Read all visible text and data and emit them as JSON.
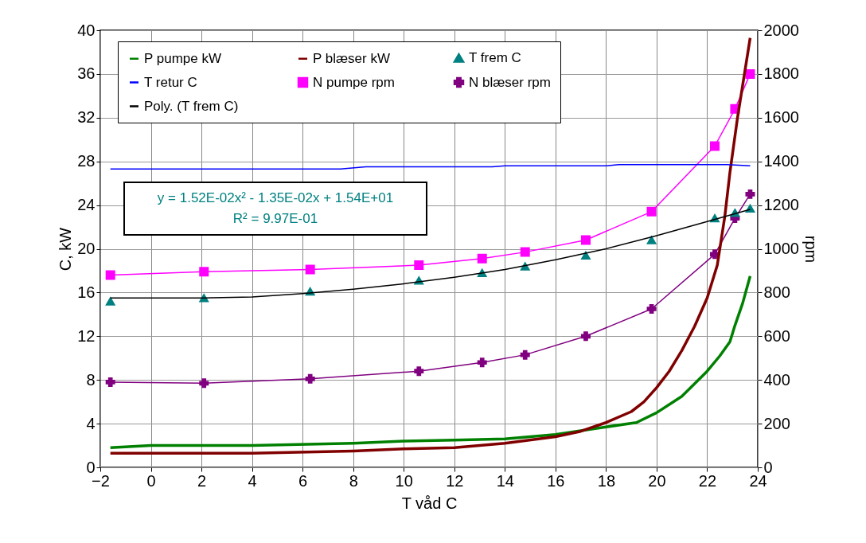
{
  "chart_data": {
    "type": "line",
    "xlabel": "T våd C",
    "ylabel": "C, kW",
    "y2label": "rpm",
    "xlim": [
      -2,
      24
    ],
    "xticks": [
      -2,
      0,
      2,
      4,
      6,
      8,
      10,
      12,
      14,
      16,
      18,
      20,
      22,
      24
    ],
    "ylim": [
      0,
      40
    ],
    "yticks": [
      0,
      4,
      8,
      12,
      16,
      20,
      24,
      28,
      32,
      36,
      40
    ],
    "y2lim": [
      0,
      2000
    ],
    "y2ticks": [
      0,
      200,
      400,
      600,
      800,
      1000,
      1200,
      1400,
      1600,
      1800,
      2000
    ],
    "grid": true,
    "legend": "top left",
    "annotations": [
      "y = 1.52E-02x² - 1.35E-02x + 1.54E+01",
      "R² = 9.97E-01"
    ],
    "series": [
      {
        "name": "P pumpe kW",
        "color": "#008000",
        "marker": "none",
        "x": [
          -1.6,
          0,
          4,
          8,
          10,
          12,
          14,
          16,
          18,
          19.2,
          20,
          21,
          22,
          22.5,
          22.9,
          23.1,
          23.4,
          23.7
        ],
        "values": [
          1.8,
          2.0,
          2.0,
          2.2,
          2.4,
          2.5,
          2.6,
          3.0,
          3.7,
          4.1,
          5.0,
          6.5,
          8.8,
          10.2,
          11.5,
          13,
          15,
          17.5
        ]
      },
      {
        "name": "P blæser kW",
        "color": "#800000",
        "marker": "none",
        "x": [
          -1.6,
          4,
          8,
          10,
          12,
          14,
          16,
          17,
          18,
          19,
          19.5,
          20,
          20.5,
          21,
          21.5,
          22,
          22.4,
          22.7,
          22.9,
          23.2,
          23.7
        ],
        "values": [
          1.3,
          1.3,
          1.5,
          1.7,
          1.8,
          2.2,
          2.8,
          3.3,
          4.1,
          5.1,
          6.0,
          7.3,
          8.8,
          10.7,
          12.9,
          15.5,
          18.5,
          23,
          27,
          32,
          39.3
        ]
      },
      {
        "name": "T frem C",
        "color": "#008080",
        "type": "scatter",
        "marker": "triangle",
        "x": [
          -1.6,
          2.1,
          6.3,
          10.6,
          13.1,
          14.8,
          17.2,
          19.8,
          22.3,
          23.1,
          23.7
        ],
        "values": [
          15.2,
          15.5,
          16.1,
          17.1,
          17.8,
          18.4,
          19.4,
          20.8,
          22.8,
          23.3,
          23.7
        ]
      },
      {
        "name": "T retur C",
        "color": "#0000ff",
        "marker": "none",
        "x": [
          -1.6,
          7.5,
          8.5,
          13.5,
          14,
          18,
          18.5,
          22.8,
          23.7
        ],
        "values": [
          27.3,
          27.3,
          27.5,
          27.5,
          27.6,
          27.6,
          27.7,
          27.7,
          27.6
        ]
      },
      {
        "name": "N pumpe rpm",
        "color": "#ff00ff",
        "marker": "square",
        "axis": "y2",
        "x": [
          -1.6,
          2.1,
          6.3,
          10.6,
          13.1,
          14.8,
          17.2,
          19.8,
          22.3,
          23.1,
          23.7
        ],
        "values": [
          880,
          895,
          905,
          925,
          955,
          985,
          1040,
          1170,
          1470,
          1640,
          1800
        ]
      },
      {
        "name": "N blæser rpm",
        "color": "#800080",
        "marker": "cross",
        "axis": "y2",
        "x": [
          -1.6,
          2.1,
          6.3,
          10.6,
          13.1,
          14.8,
          17.2,
          19.8,
          22.3,
          23.1,
          23.7
        ],
        "values": [
          390,
          385,
          405,
          440,
          480,
          515,
          600,
          725,
          975,
          1140,
          1250
        ]
      },
      {
        "name": "Poly. (T frem C)",
        "color": "#000000",
        "marker": "none",
        "x": [
          -1.6,
          2,
          4,
          6,
          8,
          10,
          12,
          14,
          16,
          18,
          20,
          22,
          23.7
        ],
        "values": [
          15.5,
          15.5,
          15.6,
          15.9,
          16.3,
          16.8,
          17.4,
          18.1,
          19.0,
          20.0,
          21.2,
          22.5,
          23.6
        ]
      }
    ]
  }
}
